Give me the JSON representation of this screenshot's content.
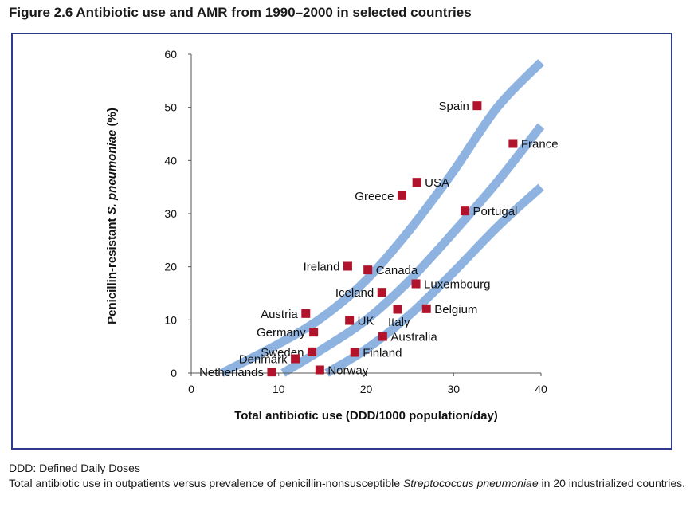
{
  "title": "Figure 2.6 Antibiotic use and AMR from 1990–2000 in selected countries",
  "footnote_ddd": "DDD: Defined Daily Doses",
  "footnote_desc": {
    "before": "Total antibiotic use in outpatients versus prevalence of penicillin-nonsusceptible ",
    "italic": "Streptococcus pneumoniae",
    "after": " in 20 industrialized countries."
  },
  "colors": {
    "frame": "#2e3a8c",
    "marker": "#b0132b",
    "band": "#8fb3e0"
  },
  "chart_data": {
    "type": "scatter",
    "xlabel": "Total antibiotic use (DDD/1000 population/day)",
    "ylabel": {
      "before": "Penicillin-resistant ",
      "italic": "S. pneumoniae",
      "after": " (%)"
    },
    "xlim": [
      0,
      40
    ],
    "ylim": [
      0,
      60
    ],
    "xticks": [
      0,
      10,
      20,
      30,
      40
    ],
    "yticks": [
      0,
      10,
      20,
      30,
      40,
      50,
      60
    ],
    "grid": false,
    "points": [
      {
        "label": "Spain",
        "x": 32.7,
        "y": 50.3,
        "label_side": "left"
      },
      {
        "label": "France",
        "x": 36.8,
        "y": 43.2,
        "label_side": "right"
      },
      {
        "label": "USA",
        "x": 25.8,
        "y": 35.9,
        "label_side": "right"
      },
      {
        "label": "Greece",
        "x": 24.1,
        "y": 33.4,
        "label_side": "left"
      },
      {
        "label": "Portugal",
        "x": 31.3,
        "y": 30.5,
        "label_side": "right"
      },
      {
        "label": "Ireland",
        "x": 17.9,
        "y": 20.1,
        "label_side": "left"
      },
      {
        "label": "Canada",
        "x": 20.2,
        "y": 19.4,
        "label_side": "right"
      },
      {
        "label": "Luxembourg",
        "x": 25.7,
        "y": 16.8,
        "label_side": "right"
      },
      {
        "label": "Iceland",
        "x": 21.8,
        "y": 15.2,
        "label_side": "left"
      },
      {
        "label": "Austria",
        "x": 13.1,
        "y": 11.2,
        "label_side": "left"
      },
      {
        "label": "Belgium",
        "x": 26.9,
        "y": 12.1,
        "label_side": "right"
      },
      {
        "label": "Italy",
        "x": 23.6,
        "y": 12.0,
        "label_side": "below"
      },
      {
        "label": "UK",
        "x": 18.1,
        "y": 9.9,
        "label_side": "right"
      },
      {
        "label": "Germany",
        "x": 14.0,
        "y": 7.7,
        "label_side": "left"
      },
      {
        "label": "Australia",
        "x": 21.9,
        "y": 6.9,
        "label_side": "right"
      },
      {
        "label": "Sweden",
        "x": 13.8,
        "y": 4.0,
        "label_side": "left"
      },
      {
        "label": "Finland",
        "x": 18.7,
        "y": 3.9,
        "label_side": "right"
      },
      {
        "label": "Denmark",
        "x": 11.9,
        "y": 2.7,
        "label_side": "left"
      },
      {
        "label": "Norway",
        "x": 14.7,
        "y": 0.6,
        "label_side": "right"
      },
      {
        "label": "Netherlands",
        "x": 9.2,
        "y": 0.2,
        "label_side": "left"
      }
    ],
    "bands": [
      {
        "points": [
          [
            3.5,
            0
          ],
          [
            10,
            5.5
          ],
          [
            15,
            10.5
          ],
          [
            20,
            17.5
          ],
          [
            25,
            27
          ],
          [
            30,
            38
          ],
          [
            35,
            50
          ],
          [
            40,
            58.5
          ]
        ]
      },
      {
        "points": [
          [
            10.5,
            0
          ],
          [
            15,
            4.5
          ],
          [
            20,
            10
          ],
          [
            25,
            17.5
          ],
          [
            30,
            26.5
          ],
          [
            35,
            36
          ],
          [
            40,
            46.5
          ]
        ]
      },
      {
        "points": [
          [
            15.5,
            0
          ],
          [
            20,
            4.5
          ],
          [
            25,
            11
          ],
          [
            30,
            19
          ],
          [
            35,
            27.5
          ],
          [
            40,
            35
          ]
        ]
      }
    ]
  }
}
